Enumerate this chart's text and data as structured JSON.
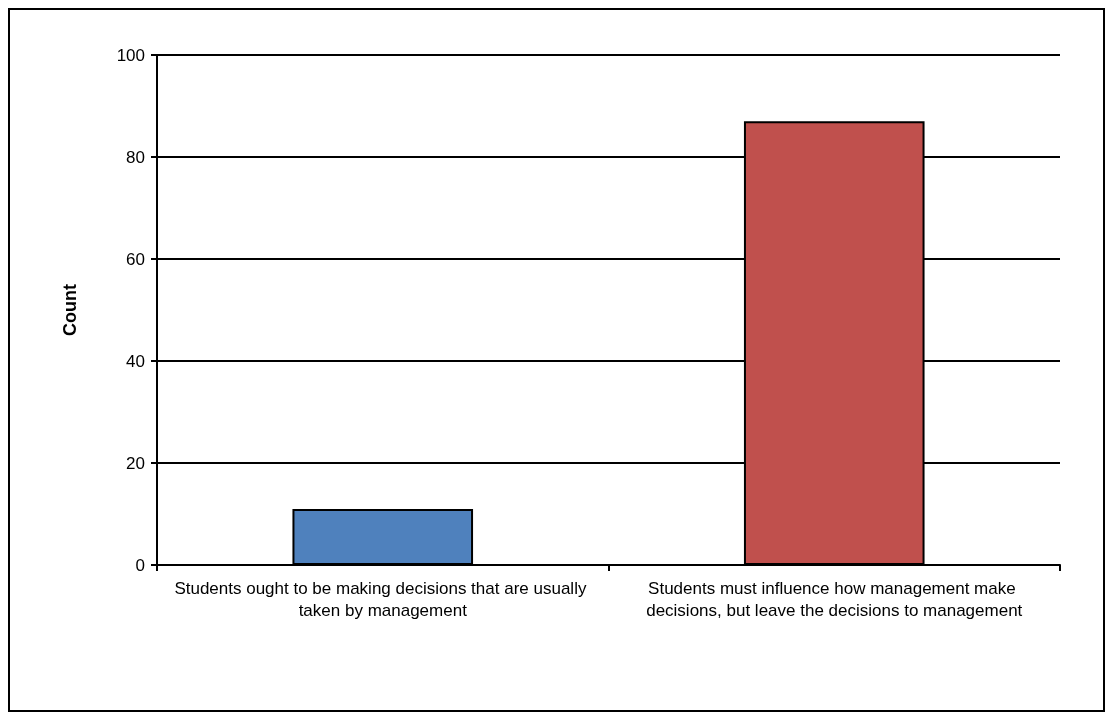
{
  "chart_data": {
    "type": "bar",
    "ylabel": "Count",
    "categories": [
      "Students ought to be making decisions that are usually taken by management",
      "Students must influence how management make decisions, but leave the decisions to management"
    ],
    "values": [
      11,
      87
    ],
    "colors": [
      "#4f81bd",
      "#c0504d"
    ],
    "ylim": [
      0,
      100
    ],
    "yticks": [
      0,
      20,
      40,
      60,
      80,
      100
    ],
    "grid": "y"
  }
}
